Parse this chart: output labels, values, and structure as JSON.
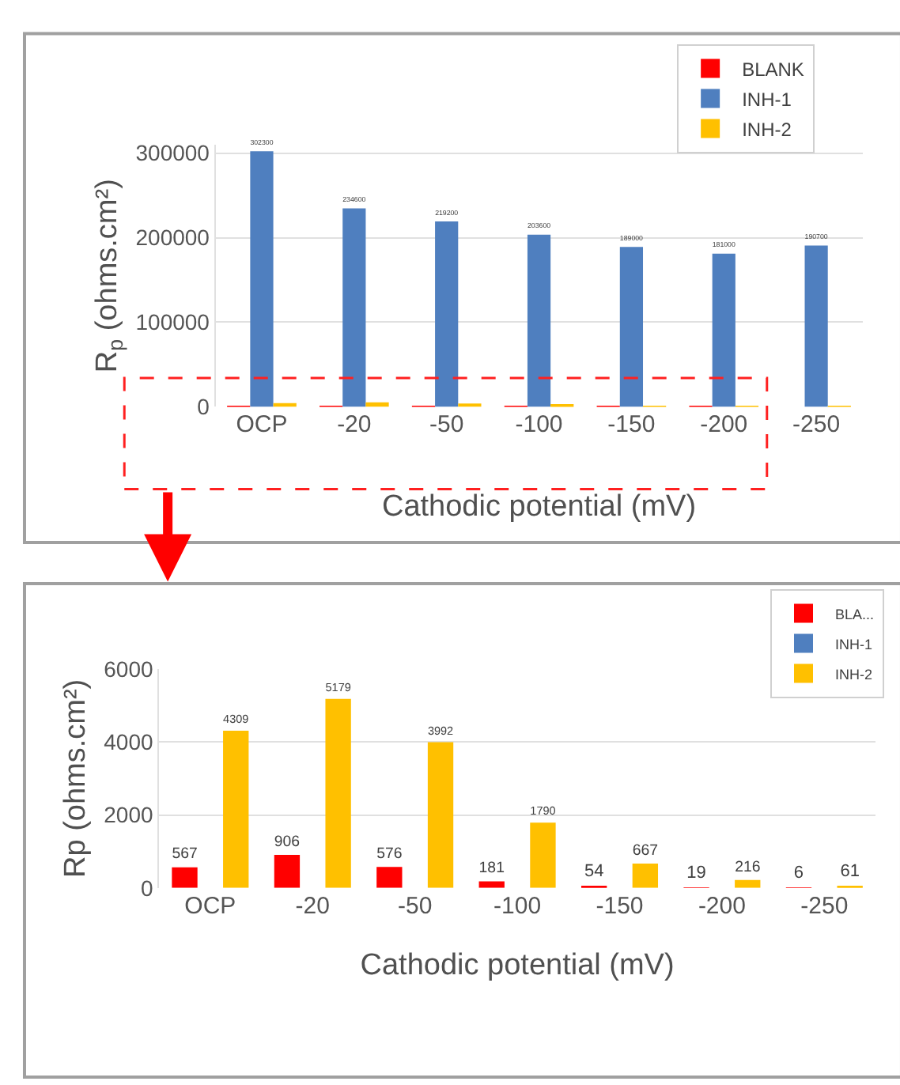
{
  "chart_data": [
    {
      "type": "bar",
      "xlabel": "Cathodic potential (mV)",
      "ylabel": "R$_{p}$ (ohms.cm²)",
      "categories": [
        "OCP",
        "-20",
        "-50",
        "-100",
        "-150",
        "-200",
        "-250"
      ],
      "ylim": [
        0,
        310000
      ],
      "yticks": [
        0,
        100000,
        200000,
        300000
      ],
      "grid": "y",
      "legend": "top right",
      "series": [
        {
          "name": "BLANK",
          "color": "#ff0000",
          "values": [
            567,
            906,
            576,
            181,
            54,
            19,
            6
          ]
        },
        {
          "name": "INH-1",
          "color": "#4f7fbf",
          "values": [
            302300,
            234600,
            219200,
            203600,
            189000,
            181000,
            190700
          ],
          "value_labels": [
            "302300",
            "234600",
            "219200",
            "203600",
            "189000",
            "181000",
            "190700"
          ]
        },
        {
          "name": "INH-2",
          "color": "#ffc000",
          "values": [
            4309,
            5179,
            3992,
            1790,
            667,
            216,
            61
          ]
        }
      ]
    },
    {
      "type": "bar",
      "xlabel": "Cathodic potential (mV)",
      "ylabel": "Rp (ohms.cm²)",
      "categories": [
        "OCP",
        "-20",
        "-50",
        "-100",
        "-150",
        "-200",
        "-250"
      ],
      "ylim": [
        0,
        6000
      ],
      "yticks": [
        0,
        2000,
        4000,
        6000
      ],
      "grid": "y",
      "legend": "top right",
      "series": [
        {
          "name": "BLA...",
          "color": "#ff0000",
          "values": [
            567,
            906,
            576,
            181,
            54,
            19,
            6
          ],
          "value_labels": [
            "567",
            "906",
            "576",
            "181",
            "54",
            "19",
            "6"
          ]
        },
        {
          "name": "INH-1",
          "color": "#4f7fbf",
          "values": [
            null,
            null,
            null,
            null,
            null,
            null,
            null
          ]
        },
        {
          "name": "INH-2",
          "color": "#ffc000",
          "values": [
            4309,
            5179,
            3992,
            1790,
            667,
            216,
            61
          ],
          "value_labels": [
            "4309",
            "5179",
            "3992",
            "1790",
            "667",
            "216",
            "61"
          ]
        }
      ]
    }
  ]
}
